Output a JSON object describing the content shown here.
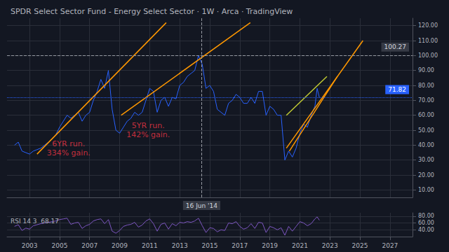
{
  "chart_data": [
    {
      "type": "line",
      "title": "SPDR Select Sector Fund - Energy Select Sector · 1W · Arca · TradingView",
      "x": [
        2002,
        2002.25,
        2002.5,
        2002.75,
        2003,
        2003.25,
        2003.5,
        2003.75,
        2004,
        2004.25,
        2004.5,
        2004.75,
        2005,
        2005.25,
        2005.5,
        2005.75,
        2006,
        2006.25,
        2006.5,
        2006.75,
        2007,
        2007.25,
        2007.5,
        2007.75,
        2008,
        2008.25,
        2008.5,
        2008.75,
        2009,
        2009.25,
        2009.5,
        2009.75,
        2010,
        2010.25,
        2010.5,
        2010.75,
        2011,
        2011.25,
        2011.5,
        2011.75,
        2012,
        2012.25,
        2012.5,
        2012.75,
        2013,
        2013.25,
        2013.5,
        2013.75,
        2014,
        2014.25,
        2014.5,
        2014.75,
        2015,
        2015.25,
        2015.5,
        2015.75,
        2016,
        2016.25,
        2016.5,
        2016.75,
        2017,
        2017.25,
        2017.5,
        2017.75,
        2018,
        2018.25,
        2018.5,
        2018.75,
        2019,
        2019.25,
        2019.5,
        2019.75,
        2020,
        2020.25,
        2020.5,
        2020.75,
        2021,
        2021.25,
        2021.5,
        2021.75,
        2022,
        2022.15,
        2022.3
      ],
      "series": [
        {
          "color": "#2962ff",
          "values": [
            40,
            42,
            36,
            35,
            34,
            36,
            37,
            38,
            40,
            42,
            44,
            47,
            52,
            56,
            60,
            58,
            60,
            62,
            56,
            60,
            62,
            70,
            76,
            84,
            78,
            90,
            64,
            50,
            48,
            52,
            56,
            58,
            62,
            60,
            62,
            70,
            78,
            76,
            62,
            70,
            72,
            66,
            72,
            71,
            80,
            82,
            86,
            88,
            90,
            100,
            94,
            78,
            80,
            76,
            64,
            62,
            60,
            68,
            70,
            74,
            72,
            68,
            68,
            72,
            68,
            76,
            76,
            60,
            66,
            64,
            60,
            60,
            30,
            36,
            32,
            38,
            48,
            54,
            52,
            60,
            66,
            78,
            71.82
          ]
        },
        {
          "color": "#ff9800",
          "line_style": "solid",
          "x": [
            2003.5,
            2012.1
          ],
          "values": [
            34,
            122
          ]
        },
        {
          "color": "#ff9800",
          "line_style": "solid",
          "x": [
            2009.1,
            2017.7
          ],
          "values": [
            60,
            122
          ]
        },
        {
          "color": "#ff9800",
          "line_style": "solid",
          "x": [
            2020.1,
            2025.2
          ],
          "values": [
            38,
            110
          ]
        },
        {
          "color": "#ff9800",
          "line_style": "solid",
          "x": [
            2020.3,
            2023.5
          ],
          "values": [
            36,
            86
          ]
        },
        {
          "color": "#c0ca33",
          "line_style": "solid",
          "x": [
            2020.1,
            2022.8
          ],
          "values": [
            60,
            86
          ]
        }
      ],
      "annotations": [
        {
          "text": "6YR run.\n334% gain.",
          "x": 2005.6,
          "y": 38,
          "color": "#f23645"
        },
        {
          "text": "5YR run.\n142% gain.",
          "x": 2010.9,
          "y": 50,
          "color": "#f23645"
        }
      ],
      "crosshair": {
        "x": 2014.46,
        "x_label": "16 Jun '14",
        "y": 100.27,
        "y_label": "100.27"
      },
      "price_tag": {
        "value": 71.82,
        "label": "71.82",
        "color": "#2962ff"
      },
      "xlim": [
        2001.5,
        2028.5
      ],
      "xticks": [
        2003,
        2005,
        2007,
        2009,
        2011,
        2013,
        2015,
        2017,
        2019,
        2021,
        2023,
        2025,
        2027
      ],
      "ylim": [
        5,
        125
      ],
      "yticks": [
        {
          "value": 10,
          "label": "10.00"
        },
        {
          "value": 20,
          "label": "20.00"
        },
        {
          "value": 30,
          "label": "30.00"
        },
        {
          "value": 40,
          "label": "40.00"
        },
        {
          "value": 50,
          "label": "50.00"
        },
        {
          "value": 60,
          "label": "60.00"
        },
        {
          "value": 70,
          "label": "70.00"
        },
        {
          "value": 80,
          "label": "80.00"
        },
        {
          "value": 90,
          "label": "90.00"
        },
        {
          "value": 100,
          "label": "100.00"
        },
        {
          "value": 110,
          "label": "110.00"
        },
        {
          "value": 120,
          "label": "120.00"
        }
      ],
      "grid": true,
      "tick_labels": "y"
    },
    {
      "type": "line",
      "title": "RSI 14 3  68.17",
      "x": [
        2002,
        2002.25,
        2002.5,
        2002.75,
        2003,
        2003.25,
        2003.5,
        2003.75,
        2004,
        2004.25,
        2004.5,
        2004.75,
        2005,
        2005.25,
        2005.5,
        2005.75,
        2006,
        2006.25,
        2006.5,
        2006.75,
        2007,
        2007.25,
        2007.5,
        2007.75,
        2008,
        2008.25,
        2008.5,
        2008.75,
        2009,
        2009.25,
        2009.5,
        2009.75,
        2010,
        2010.25,
        2010.5,
        2010.75,
        2011,
        2011.25,
        2011.5,
        2011.75,
        2012,
        2012.25,
        2012.5,
        2012.75,
        2013,
        2013.25,
        2013.5,
        2013.75,
        2014,
        2014.25,
        2014.5,
        2014.75,
        2015,
        2015.25,
        2015.5,
        2015.75,
        2016,
        2016.25,
        2016.5,
        2016.75,
        2017,
        2017.25,
        2017.5,
        2017.75,
        2018,
        2018.25,
        2018.5,
        2018.75,
        2019,
        2019.25,
        2019.5,
        2019.75,
        2020,
        2020.25,
        2020.5,
        2020.75,
        2021,
        2021.25,
        2021.5,
        2021.75,
        2022,
        2022.15,
        2022.3
      ],
      "series": [
        {
          "color": "#7e57c2",
          "values": [
            50,
            55,
            38,
            45,
            42,
            52,
            55,
            58,
            60,
            62,
            64,
            66,
            70,
            72,
            74,
            56,
            60,
            62,
            44,
            52,
            56,
            66,
            70,
            72,
            58,
            70,
            36,
            30,
            38,
            50,
            54,
            56,
            62,
            48,
            54,
            66,
            72,
            58,
            36,
            56,
            60,
            42,
            58,
            52,
            62,
            60,
            64,
            62,
            66,
            74,
            52,
            32,
            46,
            44,
            34,
            40,
            38,
            60,
            58,
            64,
            50,
            42,
            46,
            58,
            44,
            62,
            60,
            32,
            50,
            46,
            40,
            46,
            24,
            50,
            36,
            50,
            64,
            60,
            52,
            58,
            72,
            78,
            68.17
          ]
        }
      ],
      "xlim": [
        2001.5,
        2028.5
      ],
      "xticks": [
        2003,
        2005,
        2007,
        2009,
        2011,
        2013,
        2015,
        2017,
        2019,
        2021,
        2023,
        2025,
        2027
      ],
      "ylim": [
        20,
        90
      ],
      "yticks": [
        {
          "value": 40,
          "label": "40.00"
        },
        {
          "value": 60,
          "label": "60.00"
        },
        {
          "value": 80,
          "label": "80.00"
        }
      ],
      "grid": true
    }
  ]
}
